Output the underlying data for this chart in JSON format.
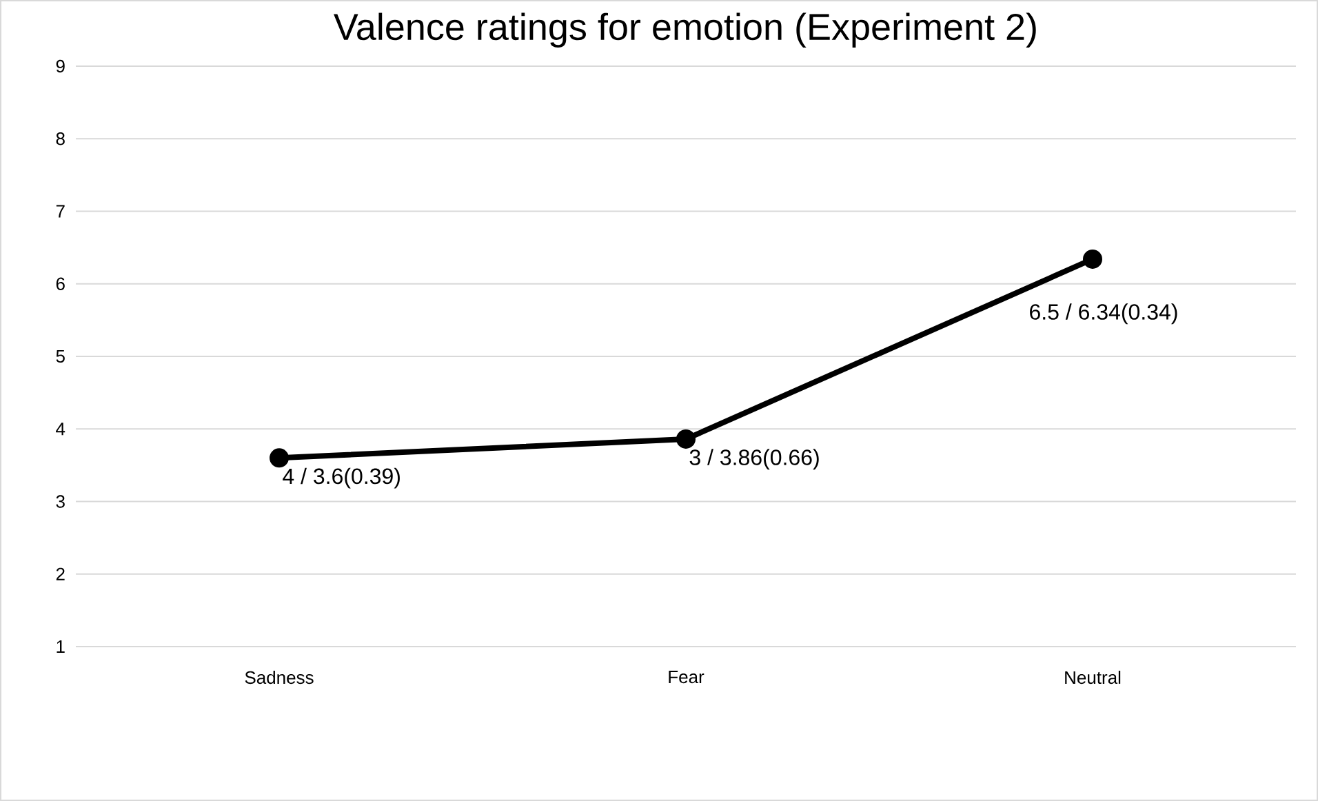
{
  "chart_data": {
    "type": "line",
    "title": "Valence ratings for emotion (Experiment 2)",
    "categories": [
      "Sadness",
      "Fear",
      "Neutral"
    ],
    "values": [
      3.6,
      3.86,
      6.34
    ],
    "value_labels": [
      "4 / 3.6(0.39)",
      "3 / 3.86(0.66)",
      "6.5 / 6.34(0.34)"
    ],
    "color": "#000000",
    "marker": "circle",
    "line_style": "solid",
    "ylim": [
      1,
      9
    ],
    "yticks": [
      1,
      2,
      3,
      4,
      5,
      6,
      7,
      8,
      9
    ],
    "grid": "y"
  }
}
